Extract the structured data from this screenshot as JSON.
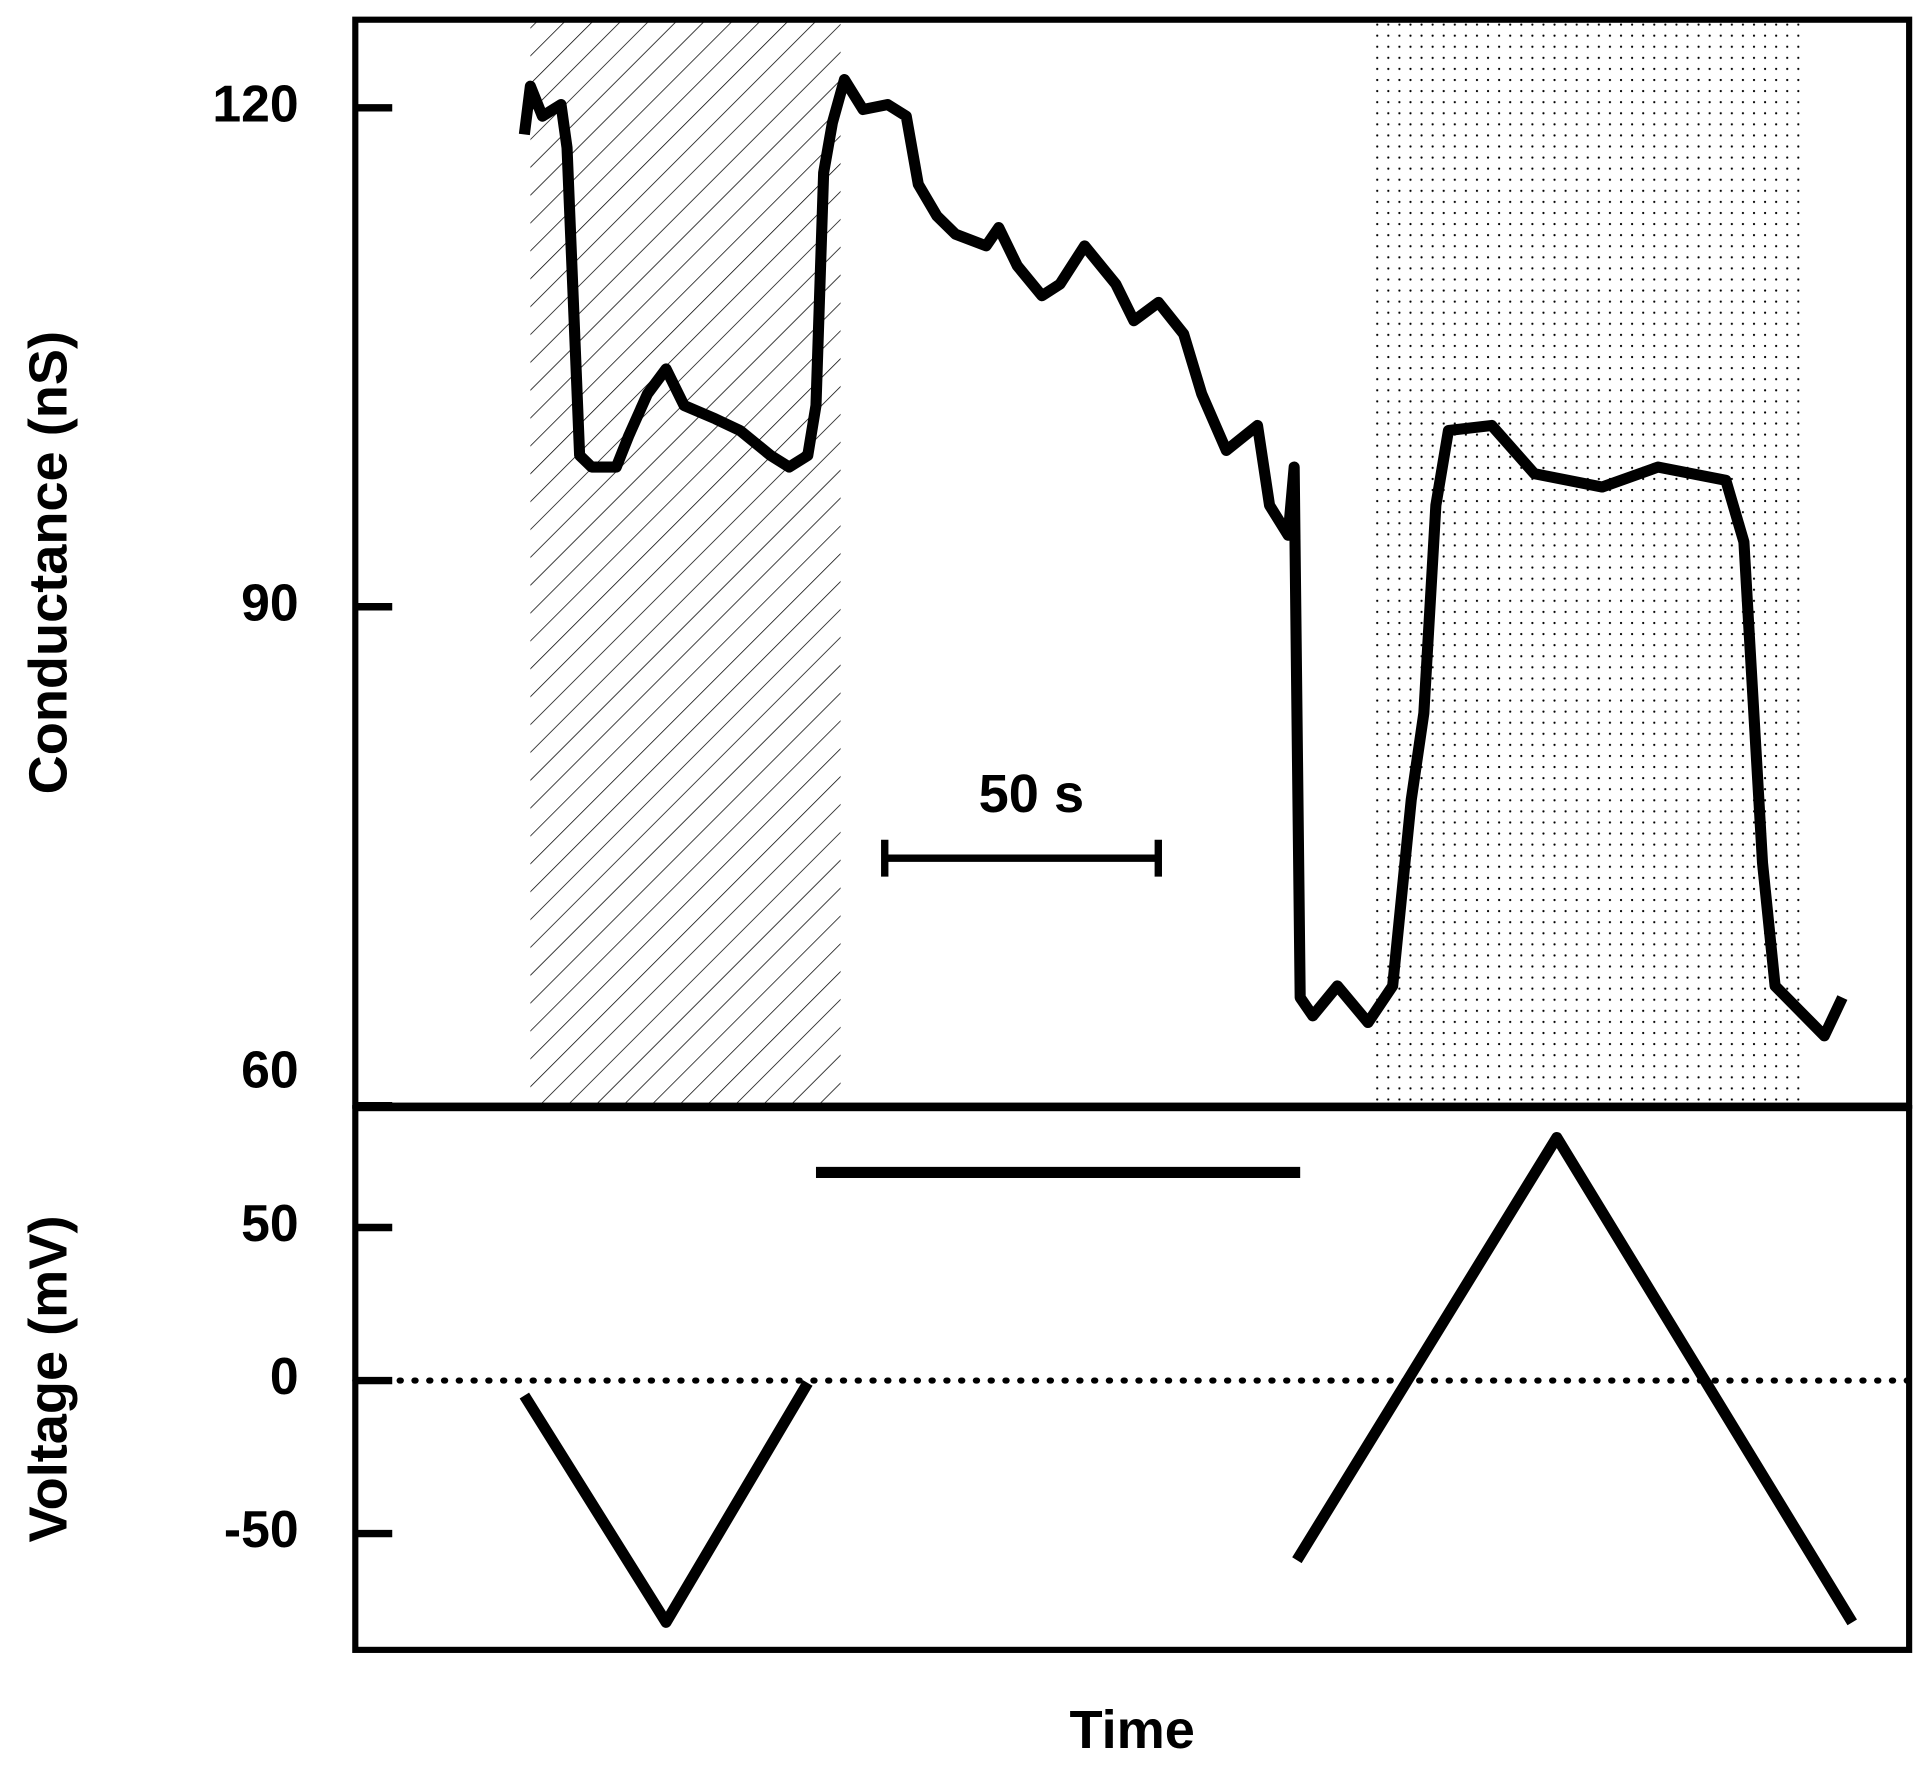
{
  "chart_data": [
    {
      "type": "line",
      "ylabel": "Conductance (nS)",
      "xlim": [
        0,
        284
      ],
      "ylim": [
        60,
        125.3
      ],
      "yticks": [
        60,
        90,
        120
      ],
      "shaded_regions": [
        {
          "x": [
            32.0,
            88.7
          ],
          "pattern": "hatch"
        },
        {
          "x": [
            185.8,
            264.0
          ],
          "pattern": "dots"
        }
      ],
      "scalebar": {
        "label": "50 s",
        "length": 50
      },
      "series": [
        {
          "color": "#000000",
          "x": [
            30.9,
            32.0,
            34.2,
            37.6,
            38.7,
            39.9,
            41.0,
            43.2,
            47.7,
            50.0,
            53.4,
            56.8,
            60.1,
            65.8,
            70.3,
            75.9,
            79.3,
            82.7,
            84.2,
            85.6,
            87.2,
            89.4,
            92.8,
            97.3,
            100.7,
            102.9,
            106.3,
            109.7,
            115.3,
            117.6,
            121.0,
            125.5,
            128.8,
            133.3,
            139.0,
            142.3,
            146.8,
            151.4,
            154.7,
            159.2,
            164.9,
            167.1,
            170.5,
            171.6,
            172.7,
            175.0,
            179.5,
            185.1,
            189.6,
            193.0,
            195.3,
            197.5,
            199.8,
            207.7,
            215.5,
            227.9,
            238.1,
            250.5,
            253.8,
            257.2,
            259.5,
            264.0,
            268.5,
            271.8
          ],
          "values": [
            118.4,
            121.3,
            119.5,
            120.2,
            117.6,
            108.0,
            99.1,
            98.4,
            98.4,
            100.3,
            102.8,
            104.3,
            102.1,
            101.3,
            100.6,
            99.1,
            98.4,
            99.1,
            102.1,
            116.1,
            119.1,
            121.7,
            119.9,
            120.2,
            119.5,
            115.4,
            113.5,
            112.4,
            111.7,
            112.8,
            110.5,
            108.7,
            109.4,
            111.7,
            109.4,
            107.2,
            108.3,
            106.4,
            102.8,
            99.4,
            100.9,
            96.1,
            94.3,
            98.4,
            66.5,
            65.4,
            67.2,
            65.0,
            67.2,
            78.4,
            83.6,
            96.1,
            100.6,
            100.9,
            98.0,
            97.2,
            98.4,
            97.6,
            93.9,
            74.6,
            67.2,
            65.7,
            64.2,
            66.5
          ]
        }
      ]
    },
    {
      "type": "line",
      "ylabel": "Voltage (mV)",
      "xlabel": "Time",
      "xlim": [
        0,
        284
      ],
      "ylim": [
        -88,
        89
      ],
      "yticks": [
        -50,
        0,
        50
      ],
      "zero_line": true,
      "series": [
        {
          "color": "#000000",
          "x": [
            30.9,
            56.8,
            82.7,
            83.5,
            84.2,
            172.7,
            172.4,
            172.1,
            219.6,
            273.6
          ],
          "values": [
            -4.9,
            -79,
            -0.8,
            null,
            68,
            68,
            null,
            -58.7,
            79.4,
            -79
          ]
        }
      ]
    }
  ]
}
